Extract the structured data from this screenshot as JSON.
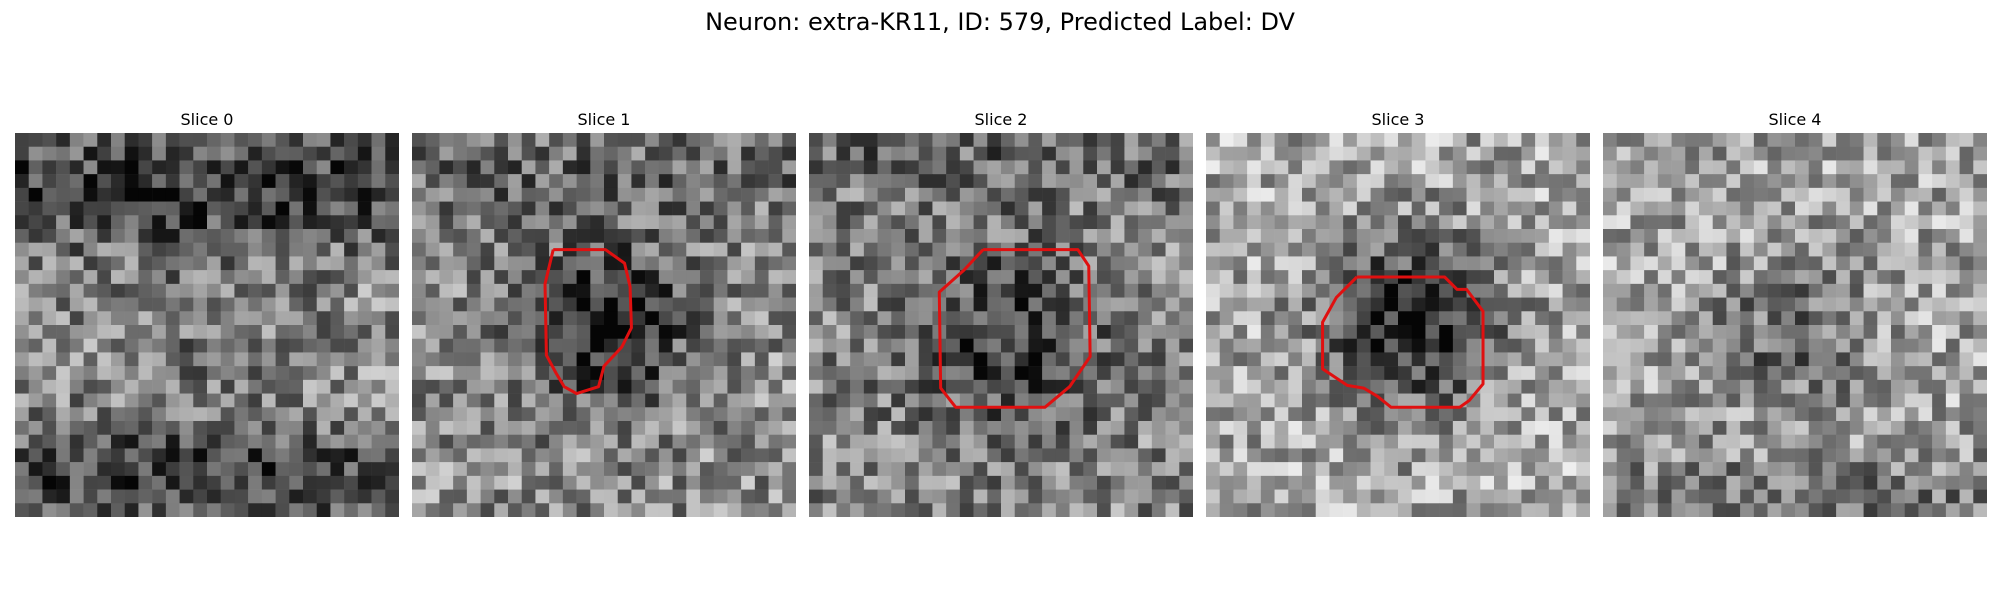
{
  "figure": {
    "title": "Neuron: extra-KR11, ID: 579, Predicted Label: DV"
  },
  "contour_color": "#e01010",
  "panels": [
    {
      "title": "Slice 0",
      "seed": 11,
      "base": 0.56,
      "dark_blob": {
        "cx": 13.5,
        "cy": 14,
        "r": 8,
        "depth": 0.1
      },
      "bands": [
        {
          "cy": 4.0,
          "w": 3.0,
          "depth": 0.32
        },
        {
          "cy": 25.0,
          "w": 2.6,
          "depth": 0.3
        }
      ],
      "contour": []
    },
    {
      "title": "Slice 1",
      "seed": 23,
      "base": 0.55,
      "dark_blob": {
        "cx": 14.2,
        "cy": 14,
        "r": 5.5,
        "depth": 0.45
      },
      "bands": [
        {
          "cy": 3.0,
          "w": 2.5,
          "depth": 0.15
        }
      ],
      "contour": [
        [
          10.3,
          8.5
        ],
        [
          14.1,
          8.5
        ],
        [
          15.5,
          9.5
        ],
        [
          15.9,
          11.2
        ],
        [
          16.0,
          14.2
        ],
        [
          15.3,
          15.6
        ],
        [
          14.0,
          17.0
        ],
        [
          13.6,
          18.5
        ],
        [
          12.0,
          19.0
        ],
        [
          11.1,
          18.5
        ],
        [
          10.5,
          17.5
        ],
        [
          9.8,
          16.2
        ],
        [
          9.7,
          11.0
        ],
        [
          10.3,
          8.5
        ]
      ]
    },
    {
      "title": "Slice 2",
      "seed": 37,
      "base": 0.52,
      "dark_blob": {
        "cx": 14.5,
        "cy": 15,
        "r": 6.5,
        "depth": 0.3
      },
      "bands": [
        {
          "cy": 2.0,
          "w": 2.0,
          "depth": 0.12
        }
      ],
      "contour": [
        [
          12.7,
          8.5
        ],
        [
          19.6,
          8.5
        ],
        [
          20.4,
          9.7
        ],
        [
          20.5,
          16.3
        ],
        [
          19.0,
          18.5
        ],
        [
          17.2,
          20.0
        ],
        [
          10.7,
          20.0
        ],
        [
          9.6,
          18.6
        ],
        [
          9.5,
          11.6
        ],
        [
          11.3,
          10.0
        ],
        [
          12.7,
          8.5
        ]
      ]
    },
    {
      "title": "Slice 3",
      "seed": 41,
      "base": 0.66,
      "dark_blob": {
        "cx": 15.0,
        "cy": 13.8,
        "r": 6.0,
        "depth": 0.55
      },
      "bands": [],
      "contour": [
        [
          11.0,
          10.5
        ],
        [
          17.4,
          10.5
        ],
        [
          18.3,
          11.4
        ],
        [
          19.0,
          11.4
        ],
        [
          20.2,
          13.0
        ],
        [
          20.2,
          18.3
        ],
        [
          19.2,
          19.5
        ],
        [
          18.5,
          20.0
        ],
        [
          13.5,
          20.0
        ],
        [
          12.5,
          19.2
        ],
        [
          11.5,
          18.6
        ],
        [
          10.3,
          18.4
        ],
        [
          8.5,
          17.2
        ],
        [
          8.5,
          13.8
        ],
        [
          9.5,
          12.0
        ],
        [
          11.0,
          10.5
        ]
      ]
    },
    {
      "title": "Slice 4",
      "seed": 53,
      "base": 0.64,
      "dark_blob": {
        "cx": 13.5,
        "cy": 15,
        "r": 5.0,
        "depth": 0.25
      },
      "bands": [
        {
          "cy": 27.0,
          "w": 2.5,
          "depth": 0.18
        }
      ],
      "contour": []
    }
  ]
}
